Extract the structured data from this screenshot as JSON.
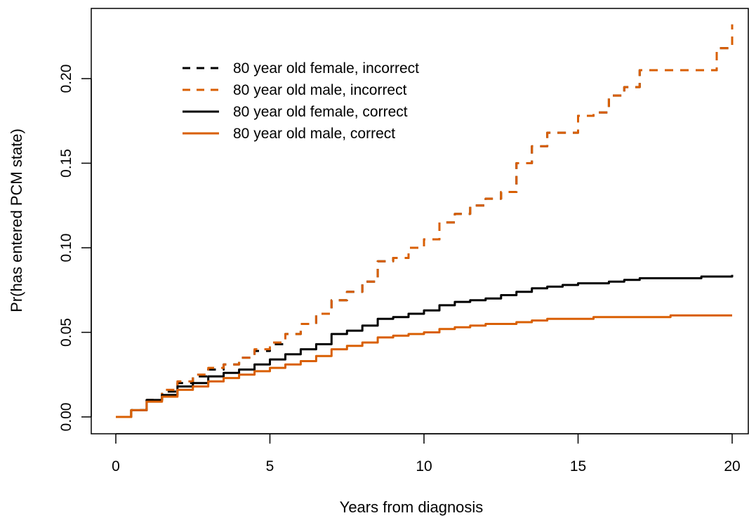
{
  "chart_data": {
    "type": "line",
    "xlabel": "Years from diagnosis",
    "ylabel": "Pr(has entered PCM state)",
    "xlim": [
      0,
      20
    ],
    "ylim": [
      0,
      0.23
    ],
    "x_ticks": [
      0,
      5,
      10,
      15,
      20
    ],
    "y_ticks": [
      0.0,
      0.05,
      0.1,
      0.15,
      0.2
    ],
    "x_tick_labels": [
      "0",
      "5",
      "10",
      "15",
      "20"
    ],
    "y_tick_labels": [
      "0.00",
      "0.05",
      "0.10",
      "0.15",
      "0.20"
    ],
    "grid": false,
    "legend_position": "top-left",
    "series": [
      {
        "name": "80 year old female, incorrect",
        "color": "#000000",
        "dash": "dashed",
        "x": [
          0,
          0.5,
          1,
          1.5,
          2,
          2.5,
          3,
          3.5,
          4,
          4.5,
          5,
          5.5,
          6,
          6.5,
          7,
          7.5,
          8,
          8.5,
          9,
          9.5,
          10,
          10.5,
          11,
          11.5,
          12,
          12.5,
          13,
          13.5,
          14,
          14.5,
          15,
          15.5,
          16,
          16.5,
          17,
          17.5,
          18,
          18.5,
          19,
          19.5,
          19.9,
          20
        ],
        "y": [
          0,
          0.004,
          0.01,
          0.015,
          0.02,
          0.024,
          0.028,
          0.031,
          0.035,
          0.039,
          0.043,
          0.049,
          0.055,
          0.061,
          0.069,
          0.074,
          0.08,
          0.092,
          0.094,
          0.1,
          0.105,
          0.115,
          0.12,
          0.125,
          0.129,
          0.133,
          0.15,
          0.16,
          0.168,
          0.168,
          0.178,
          0.18,
          0.19,
          0.195,
          0.205,
          0.205,
          0.205,
          0.205,
          0.205,
          0.218,
          0.218,
          0.232
        ]
      },
      {
        "name": "80 year old male, incorrect",
        "color": "#d95f02",
        "dash": "dashed",
        "x": [
          0,
          0.5,
          1,
          1.5,
          2,
          2.5,
          3,
          3.5,
          4,
          4.5,
          5,
          5.5,
          6,
          6.5,
          7,
          7.5,
          8,
          8.5,
          9,
          9.5,
          10,
          10.5,
          11,
          11.5,
          12,
          12.5,
          13,
          13.5,
          14,
          14.5,
          15,
          15.5,
          16,
          16.5,
          17,
          17.5,
          18,
          18.5,
          19,
          19.5,
          19.9,
          20
        ],
        "y": [
          0,
          0.004,
          0.01,
          0.016,
          0.021,
          0.025,
          0.029,
          0.031,
          0.035,
          0.04,
          0.044,
          0.049,
          0.055,
          0.061,
          0.069,
          0.074,
          0.08,
          0.092,
          0.094,
          0.1,
          0.105,
          0.115,
          0.12,
          0.125,
          0.129,
          0.133,
          0.15,
          0.16,
          0.168,
          0.168,
          0.178,
          0.18,
          0.19,
          0.195,
          0.205,
          0.205,
          0.205,
          0.205,
          0.205,
          0.218,
          0.218,
          0.232
        ]
      },
      {
        "name": "80 year old female, correct",
        "color": "#000000",
        "dash": "solid",
        "x": [
          0,
          0.5,
          1,
          1.5,
          2,
          2.5,
          3,
          3.5,
          4,
          4.5,
          5,
          5.5,
          6,
          6.5,
          7,
          7.5,
          8,
          8.5,
          9,
          9.5,
          10,
          10.5,
          11,
          11.5,
          12,
          12.5,
          13,
          13.5,
          14,
          14.5,
          15,
          15.5,
          16,
          16.5,
          17,
          17.5,
          18,
          18.5,
          19,
          19.5,
          20
        ],
        "y": [
          0,
          0.004,
          0.01,
          0.013,
          0.018,
          0.02,
          0.024,
          0.026,
          0.028,
          0.031,
          0.034,
          0.037,
          0.04,
          0.043,
          0.049,
          0.051,
          0.054,
          0.058,
          0.059,
          0.061,
          0.063,
          0.066,
          0.068,
          0.069,
          0.07,
          0.072,
          0.074,
          0.076,
          0.077,
          0.078,
          0.079,
          0.079,
          0.08,
          0.081,
          0.082,
          0.082,
          0.082,
          0.082,
          0.083,
          0.083,
          0.084
        ]
      },
      {
        "name": "80 year old male, correct",
        "color": "#d95f02",
        "dash": "solid",
        "x": [
          0,
          0.5,
          1,
          1.5,
          2,
          2.5,
          3,
          3.5,
          4,
          4.5,
          5,
          5.5,
          6,
          6.5,
          7,
          7.5,
          8,
          8.5,
          9,
          9.5,
          10,
          10.5,
          11,
          11.5,
          12,
          12.5,
          13,
          13.5,
          14,
          14.5,
          15,
          15.5,
          16,
          16.5,
          17,
          17.5,
          18,
          18.5,
          19,
          19.5,
          20
        ],
        "y": [
          0,
          0.004,
          0.009,
          0.012,
          0.016,
          0.018,
          0.021,
          0.023,
          0.025,
          0.027,
          0.029,
          0.031,
          0.033,
          0.036,
          0.04,
          0.042,
          0.044,
          0.047,
          0.048,
          0.049,
          0.05,
          0.052,
          0.053,
          0.054,
          0.055,
          0.055,
          0.056,
          0.057,
          0.058,
          0.058,
          0.058,
          0.059,
          0.059,
          0.059,
          0.059,
          0.059,
          0.06,
          0.06,
          0.06,
          0.06,
          0.06
        ]
      }
    ]
  }
}
